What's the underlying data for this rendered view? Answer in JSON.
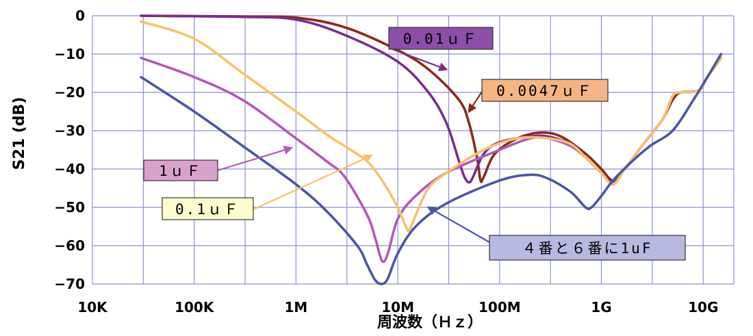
{
  "chart_data": {
    "type": "line",
    "xlabel": "周波数（Ｈｚ）",
    "ylabel": "S21 (dB)",
    "x_scale": "log",
    "xlim": [
      10000,
      20000000000
    ],
    "ylim": [
      -70,
      0
    ],
    "grid": true,
    "x_ticks": [
      {
        "value": 10000,
        "label": "10K"
      },
      {
        "value": 100000,
        "label": "100K"
      },
      {
        "value": 1000000,
        "label": "1M"
      },
      {
        "value": 10000000,
        "label": "10M"
      },
      {
        "value": 100000000,
        "label": "100M"
      },
      {
        "value": 1000000000,
        "label": "1G"
      },
      {
        "value": 10000000000,
        "label": "10G"
      }
    ],
    "y_ticks": [
      {
        "value": 0,
        "label": "0"
      },
      {
        "value": -10,
        "label": "−10"
      },
      {
        "value": -20,
        "label": "−20"
      },
      {
        "value": -30,
        "label": "−30"
      },
      {
        "value": -40,
        "label": "−40"
      },
      {
        "value": -50,
        "label": "−50"
      },
      {
        "value": -60,
        "label": "−60"
      },
      {
        "value": -70,
        "label": "−70"
      }
    ],
    "series": [
      {
        "name": "0.01ｕＦ",
        "color": "#7a2d8c",
        "label_bg": "#8b4fa8",
        "points": [
          [
            30000,
            0
          ],
          [
            300000,
            -0.3
          ],
          [
            1000000,
            -1
          ],
          [
            3000000,
            -5
          ],
          [
            10000000,
            -12
          ],
          [
            20000000,
            -20
          ],
          [
            30000000,
            -28
          ],
          [
            40000000,
            -38
          ],
          [
            45000000,
            -42
          ],
          [
            50000000,
            -43.5
          ],
          [
            55000000,
            -42
          ],
          [
            70000000,
            -36
          ],
          [
            100000000,
            -33
          ],
          [
            200000000,
            -31.5
          ],
          [
            300000000,
            -31.5
          ],
          [
            500000000,
            -33.5
          ],
          [
            700000000,
            -37
          ],
          [
            1000000000,
            -41
          ],
          [
            1300000000,
            -43.5
          ],
          [
            1700000000,
            -40
          ],
          [
            2500000000,
            -34
          ],
          [
            4000000000,
            -27
          ],
          [
            5000000000,
            -21
          ],
          [
            6000000000,
            -20
          ],
          [
            9000000000,
            -19.5
          ],
          [
            11000000000,
            -16
          ],
          [
            15000000000,
            -11
          ]
        ]
      },
      {
        "name": "0.0047ｕＦ",
        "color": "#8b2a1a",
        "label_bg": "#f4b582",
        "points": [
          [
            30000,
            0
          ],
          [
            300000,
            -0.2
          ],
          [
            1000000,
            -0.5
          ],
          [
            3000000,
            -3
          ],
          [
            10000000,
            -9
          ],
          [
            20000000,
            -14
          ],
          [
            40000000,
            -22
          ],
          [
            50000000,
            -28
          ],
          [
            60000000,
            -37
          ],
          [
            65000000,
            -43
          ],
          [
            70000000,
            -42
          ],
          [
            90000000,
            -36
          ],
          [
            150000000,
            -32
          ],
          [
            250000000,
            -30.5
          ],
          [
            400000000,
            -31.5
          ],
          [
            700000000,
            -36
          ],
          [
            1000000000,
            -40
          ],
          [
            1300000000,
            -43
          ],
          [
            1700000000,
            -40
          ],
          [
            2500000000,
            -34
          ],
          [
            4000000000,
            -27
          ],
          [
            5000000000,
            -22
          ],
          [
            6000000000,
            -20
          ],
          [
            9000000000,
            -19.5
          ],
          [
            11000000000,
            -16
          ],
          [
            15000000000,
            -11
          ]
        ]
      },
      {
        "name": "1ｕＦ",
        "color": "#b059b8",
        "label_bg": "#d7a2cc",
        "points": [
          [
            30000,
            -11
          ],
          [
            100000,
            -16
          ],
          [
            300000,
            -22
          ],
          [
            1000000,
            -32
          ],
          [
            2000000,
            -38
          ],
          [
            3000000,
            -42
          ],
          [
            5000000,
            -52
          ],
          [
            6000000,
            -58
          ],
          [
            7000000,
            -64
          ],
          [
            8000000,
            -62
          ],
          [
            10000000,
            -53
          ],
          [
            15000000,
            -47
          ],
          [
            30000000,
            -41
          ],
          [
            100000000,
            -35
          ],
          [
            200000000,
            -32
          ],
          [
            300000000,
            -32
          ],
          [
            500000000,
            -34
          ],
          [
            700000000,
            -37
          ],
          [
            1000000000,
            -41
          ],
          [
            1300000000,
            -44
          ],
          [
            1700000000,
            -40
          ],
          [
            2500000000,
            -34
          ],
          [
            4000000000,
            -27
          ],
          [
            5000000000,
            -21
          ],
          [
            6000000000,
            -20
          ],
          [
            9000000000,
            -19.5
          ],
          [
            11000000000,
            -16
          ],
          [
            15000000000,
            -11
          ]
        ]
      },
      {
        "name": "0.1ｕＦ",
        "color": "#f5c26b",
        "label_bg": "#fdfccf",
        "points": [
          [
            30000,
            -1.5
          ],
          [
            100000,
            -6
          ],
          [
            300000,
            -15
          ],
          [
            1000000,
            -25
          ],
          [
            2000000,
            -31
          ],
          [
            3000000,
            -34
          ],
          [
            5000000,
            -38
          ],
          [
            7000000,
            -43
          ],
          [
            10000000,
            -50
          ],
          [
            12000000,
            -55
          ],
          [
            13000000,
            -56
          ],
          [
            15000000,
            -52
          ],
          [
            20000000,
            -45
          ],
          [
            30000000,
            -41
          ],
          [
            70000000,
            -35
          ],
          [
            150000000,
            -32
          ],
          [
            300000000,
            -32
          ],
          [
            500000000,
            -33.5
          ],
          [
            700000000,
            -37
          ],
          [
            1000000000,
            -41
          ],
          [
            1300000000,
            -44
          ],
          [
            1700000000,
            -40
          ],
          [
            2500000000,
            -34
          ],
          [
            4000000000,
            -27
          ],
          [
            5000000000,
            -21
          ],
          [
            6000000000,
            -20
          ],
          [
            9000000000,
            -19.5
          ],
          [
            11000000000,
            -16
          ],
          [
            15000000000,
            -11
          ]
        ]
      },
      {
        "name": "４番と６番に1uF",
        "color": "#4b55a8",
        "label_bg": "#b7b9e1",
        "points": [
          [
            30000,
            -16
          ],
          [
            100000,
            -25
          ],
          [
            300000,
            -34
          ],
          [
            1000000,
            -44
          ],
          [
            2000000,
            -51
          ],
          [
            4000000,
            -60
          ],
          [
            5000000,
            -65
          ],
          [
            6000000,
            -69
          ],
          [
            7000000,
            -70
          ],
          [
            8000000,
            -68.5
          ],
          [
            10000000,
            -62
          ],
          [
            15000000,
            -55
          ],
          [
            30000000,
            -49
          ],
          [
            100000000,
            -43
          ],
          [
            200000000,
            -41.5
          ],
          [
            300000000,
            -42.5
          ],
          [
            500000000,
            -46
          ],
          [
            700000000,
            -50
          ],
          [
            800000000,
            -50
          ],
          [
            1000000000,
            -47
          ],
          [
            1300000000,
            -43
          ],
          [
            2000000000,
            -38
          ],
          [
            3000000000,
            -34
          ],
          [
            5000000000,
            -30
          ],
          [
            8000000000,
            -22
          ],
          [
            11000000000,
            -16
          ],
          [
            15000000000,
            -10
          ]
        ]
      }
    ],
    "annotations": [
      {
        "series": 0,
        "text": "0.01ｕＦ",
        "at": [
          30000000,
          -14
        ]
      },
      {
        "series": 1,
        "text": "0.0047ｕＦ",
        "at": [
          50000000,
          -25
        ]
      },
      {
        "series": 2,
        "text": "1ｕＦ",
        "at": [
          900000,
          -34.5
        ]
      },
      {
        "series": 3,
        "text": "0.1ｕＦ",
        "at": [
          5500000,
          -36.5
        ]
      },
      {
        "series": 4,
        "text": "４番と６番に1uF",
        "at": [
          20000000,
          -50
        ]
      }
    ]
  }
}
